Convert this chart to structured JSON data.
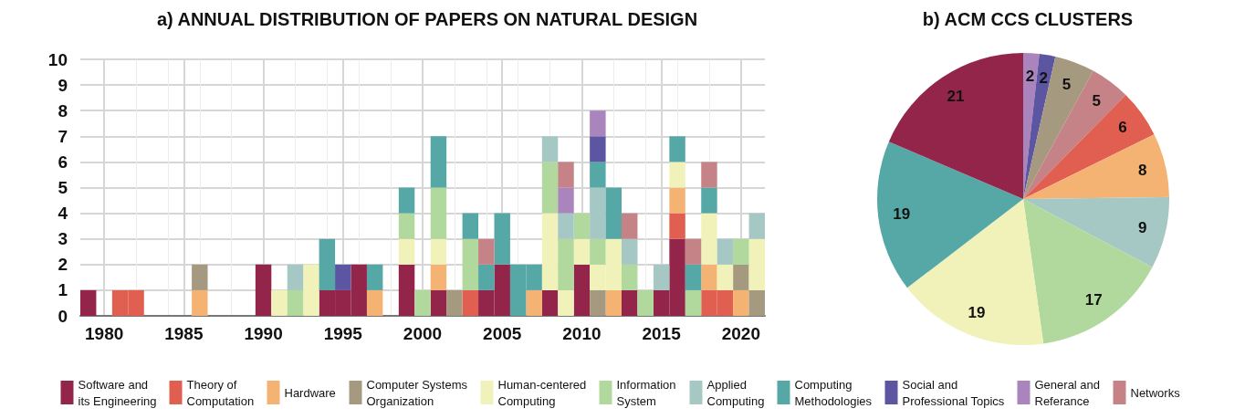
{
  "chart_data": [
    {
      "type": "bar",
      "title": "a) ANNUAL DISTRIBUTION OF PAPERS ON NATURAL DESIGN",
      "stacked": true,
      "grid": true,
      "legend": "bottom",
      "x": [
        1979,
        1980,
        1981,
        1982,
        1983,
        1984,
        1985,
        1986,
        1987,
        1988,
        1989,
        1990,
        1991,
        1992,
        1993,
        1994,
        1995,
        1996,
        1997,
        1998,
        1999,
        2000,
        2001,
        2002,
        2003,
        2004,
        2005,
        2006,
        2007,
        2008,
        2009,
        2010,
        2011,
        2012,
        2013,
        2014,
        2015,
        2016,
        2017,
        2018,
        2019,
        2020,
        2021
      ],
      "xlim": [
        1978.5,
        2021.5
      ],
      "xticks": [
        1980,
        1985,
        1990,
        1995,
        2000,
        2005,
        2010,
        2015,
        2020
      ],
      "ylim": [
        0,
        10
      ],
      "yticks": [
        0,
        1,
        2,
        3,
        4,
        5,
        6,
        7,
        8,
        9,
        10
      ],
      "series": [
        {
          "name": "Software and its Engineering",
          "color": "#93254a",
          "values": [
            1,
            null,
            null,
            null,
            null,
            null,
            null,
            null,
            null,
            null,
            null,
            2,
            null,
            null,
            null,
            1,
            1,
            2,
            null,
            null,
            2,
            null,
            1,
            null,
            null,
            1,
            2,
            null,
            null,
            1,
            null,
            2,
            null,
            null,
            1,
            null,
            1,
            3,
            null,
            null,
            null,
            null,
            null
          ]
        },
        {
          "name": "Theory of Computation",
          "color": "#e05f50",
          "values": [
            null,
            null,
            1,
            1,
            null,
            null,
            null,
            null,
            null,
            null,
            null,
            null,
            null,
            null,
            null,
            null,
            null,
            null,
            null,
            null,
            null,
            null,
            null,
            null,
            1,
            null,
            null,
            null,
            null,
            null,
            null,
            null,
            null,
            null,
            null,
            null,
            null,
            1,
            null,
            1,
            1,
            null,
            null
          ]
        },
        {
          "name": "Hardware",
          "color": "#f4b273",
          "values": [
            null,
            null,
            null,
            null,
            null,
            null,
            null,
            1,
            null,
            null,
            null,
            null,
            null,
            null,
            null,
            null,
            null,
            null,
            1,
            null,
            null,
            null,
            1,
            null,
            null,
            null,
            null,
            null,
            1,
            null,
            null,
            null,
            null,
            1,
            null,
            null,
            null,
            1,
            null,
            1,
            null,
            1,
            null
          ]
        },
        {
          "name": "Computer Systems Organization",
          "color": "#a59a7f",
          "values": [
            null,
            null,
            null,
            null,
            null,
            null,
            null,
            1,
            null,
            null,
            null,
            null,
            null,
            null,
            null,
            null,
            null,
            null,
            null,
            null,
            null,
            null,
            null,
            1,
            null,
            null,
            null,
            null,
            null,
            null,
            null,
            null,
            1,
            null,
            null,
            null,
            null,
            null,
            null,
            null,
            null,
            1,
            1
          ]
        },
        {
          "name": "Human-centered Computing",
          "color": "#f1f2b9",
          "values": [
            null,
            null,
            null,
            null,
            null,
            null,
            null,
            null,
            null,
            null,
            null,
            null,
            1,
            null,
            2,
            null,
            null,
            null,
            null,
            null,
            1,
            null,
            1,
            null,
            null,
            null,
            null,
            null,
            null,
            3,
            1,
            1,
            1,
            2,
            null,
            null,
            null,
            1,
            null,
            2,
            1,
            null,
            2
          ]
        },
        {
          "name": "Information System",
          "color": "#b1d99d",
          "values": [
            null,
            null,
            null,
            null,
            null,
            null,
            null,
            null,
            null,
            null,
            null,
            null,
            null,
            1,
            null,
            null,
            null,
            null,
            null,
            null,
            1,
            1,
            2,
            null,
            2,
            null,
            null,
            null,
            null,
            2,
            2,
            1,
            1,
            null,
            1,
            1,
            null,
            null,
            1,
            null,
            null,
            1,
            null
          ]
        },
        {
          "name": "Applied Computing",
          "color": "#a6c8c5",
          "values": [
            null,
            null,
            null,
            null,
            null,
            null,
            null,
            null,
            null,
            null,
            null,
            null,
            null,
            1,
            null,
            null,
            null,
            null,
            null,
            null,
            null,
            null,
            null,
            null,
            null,
            null,
            null,
            null,
            null,
            1,
            1,
            null,
            2,
            null,
            1,
            null,
            1,
            null,
            null,
            null,
            1,
            null,
            1
          ]
        },
        {
          "name": "Computing Methodologies",
          "color": "#56a8a7",
          "values": [
            null,
            null,
            null,
            null,
            null,
            null,
            null,
            null,
            null,
            null,
            null,
            null,
            null,
            null,
            null,
            2,
            null,
            null,
            1,
            null,
            1,
            null,
            2,
            null,
            1,
            1,
            2,
            2,
            1,
            null,
            null,
            null,
            1,
            2,
            null,
            null,
            null,
            1,
            1,
            1,
            null,
            null,
            null
          ]
        },
        {
          "name": "Social and Professional Topics",
          "color": "#5c55a1",
          "values": [
            null,
            null,
            null,
            null,
            null,
            null,
            null,
            null,
            null,
            null,
            null,
            null,
            null,
            null,
            null,
            null,
            1,
            null,
            null,
            null,
            null,
            null,
            null,
            null,
            null,
            null,
            null,
            null,
            null,
            null,
            null,
            null,
            1,
            null,
            null,
            null,
            null,
            null,
            null,
            null,
            null,
            null,
            null
          ]
        },
        {
          "name": "General and Referance",
          "color": "#aa84bc",
          "values": [
            null,
            null,
            null,
            null,
            null,
            null,
            null,
            null,
            null,
            null,
            null,
            null,
            null,
            null,
            null,
            null,
            null,
            null,
            null,
            null,
            null,
            null,
            null,
            null,
            null,
            null,
            null,
            null,
            null,
            null,
            1,
            null,
            1,
            null,
            null,
            null,
            null,
            null,
            null,
            null,
            null,
            null,
            null
          ]
        },
        {
          "name": "Networks",
          "color": "#c68387",
          "values": [
            null,
            null,
            null,
            null,
            null,
            null,
            null,
            null,
            null,
            null,
            null,
            null,
            null,
            null,
            null,
            null,
            null,
            null,
            null,
            null,
            null,
            null,
            null,
            null,
            null,
            1,
            null,
            null,
            null,
            null,
            1,
            null,
            null,
            null,
            1,
            null,
            null,
            null,
            1,
            1,
            null,
            null,
            null
          ]
        }
      ]
    },
    {
      "type": "pie",
      "title": "b) ACM CCS CLUSTERS",
      "data_labels": true,
      "categories": [
        null,
        null,
        null,
        null,
        null,
        null,
        null,
        null,
        null,
        null,
        null
      ],
      "values": [
        2,
        2,
        5,
        5,
        6,
        8,
        9,
        17,
        19,
        19,
        21
      ],
      "colors": [
        "#aa84bc",
        "#5c55a1",
        "#a59a7f",
        "#c68387",
        "#e05f50",
        "#f4b273",
        "#a6c8c5",
        "#b1d99d",
        "#f1f2b9",
        "#56a8a7",
        "#93254a"
      ]
    }
  ]
}
